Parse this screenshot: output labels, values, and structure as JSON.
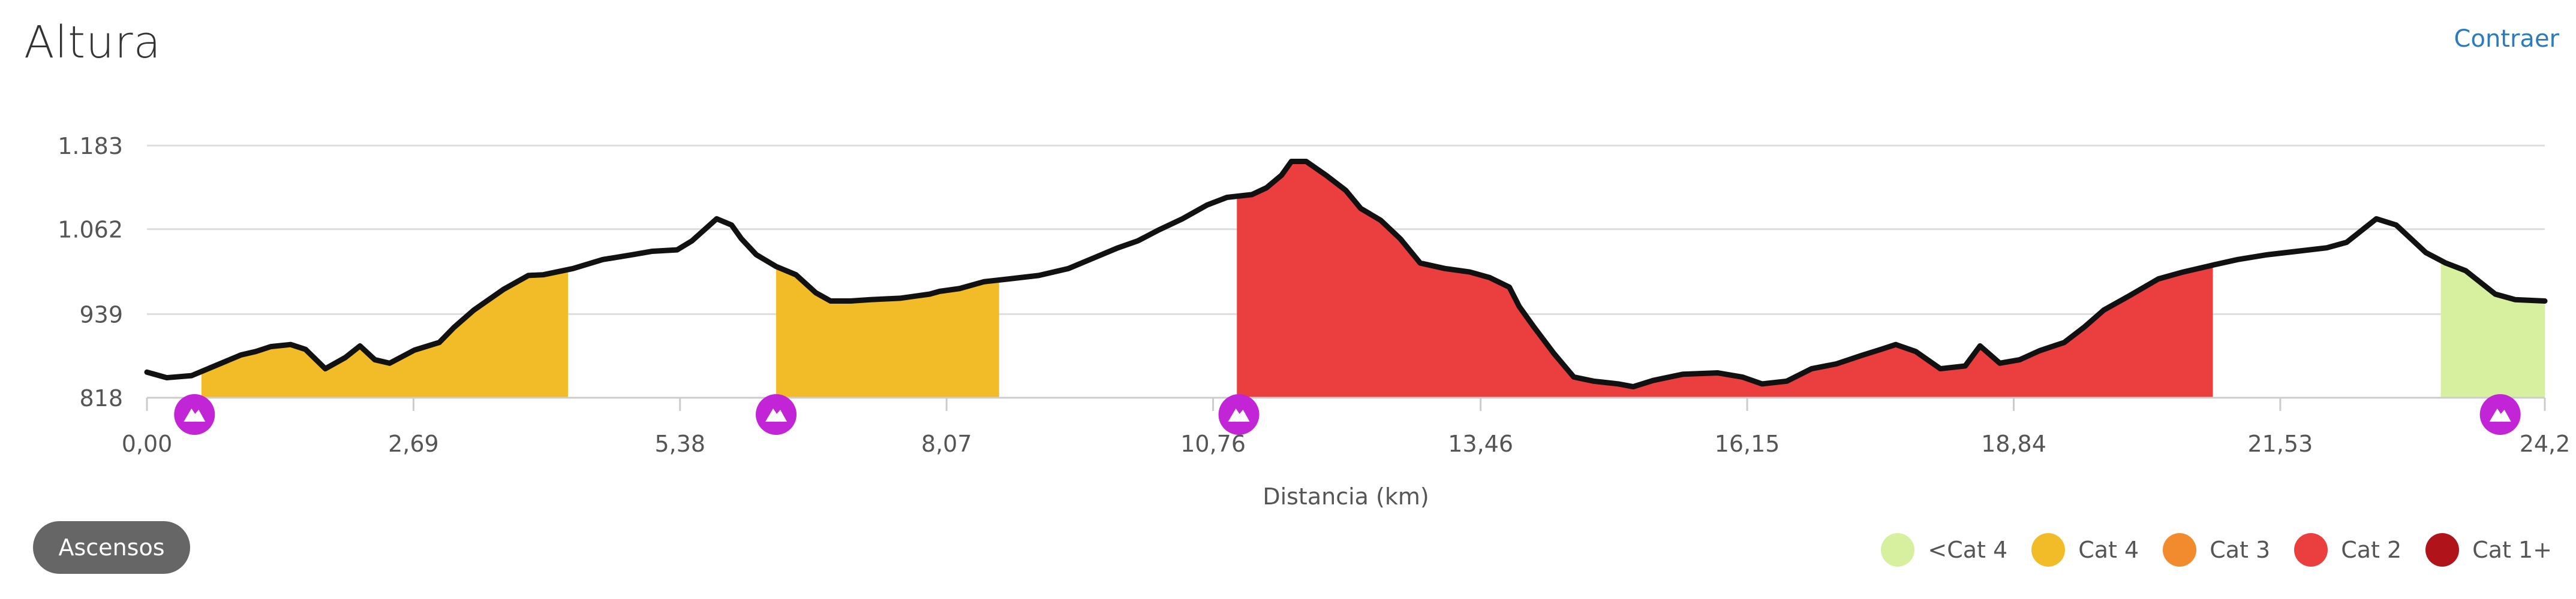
{
  "header": {
    "title": "Altura",
    "collapse_label": "Contraer"
  },
  "climbs_button_label": "Ascensos",
  "chart_data": {
    "type": "area",
    "title": "Altura",
    "xlabel": "Distancia (km)",
    "ylabel": "",
    "xlim": [
      0,
      24.2
    ],
    "ylim": [
      818,
      1183
    ],
    "x_ticks": [
      "0,00",
      "2,69",
      "5,38",
      "8,07",
      "10,76",
      "13,46",
      "16,15",
      "18,84",
      "21,53",
      "24,2"
    ],
    "x_tick_values": [
      0,
      2.69,
      5.38,
      8.07,
      10.76,
      13.46,
      16.15,
      18.84,
      21.53,
      24.2
    ],
    "y_ticks": [
      "818",
      "939",
      "1.062",
      "1.183"
    ],
    "y_tick_values": [
      818,
      939,
      1062,
      1183
    ],
    "grid": "horizontal",
    "legend_position": "bottom-right",
    "profile": [
      [
        0.0,
        855
      ],
      [
        0.2,
        847
      ],
      [
        0.45,
        850
      ],
      [
        0.7,
        865
      ],
      [
        0.95,
        880
      ],
      [
        1.1,
        885
      ],
      [
        1.25,
        892
      ],
      [
        1.45,
        895
      ],
      [
        1.6,
        888
      ],
      [
        1.8,
        860
      ],
      [
        2.0,
        876
      ],
      [
        2.15,
        893
      ],
      [
        2.3,
        873
      ],
      [
        2.45,
        868
      ],
      [
        2.7,
        887
      ],
      [
        2.95,
        898
      ],
      [
        3.1,
        920
      ],
      [
        3.3,
        945
      ],
      [
        3.6,
        975
      ],
      [
        3.85,
        995
      ],
      [
        4.0,
        996
      ],
      [
        4.3,
        1005
      ],
      [
        4.6,
        1018
      ],
      [
        4.9,
        1025
      ],
      [
        5.1,
        1030
      ],
      [
        5.35,
        1032
      ],
      [
        5.5,
        1045
      ],
      [
        5.75,
        1077
      ],
      [
        5.9,
        1068
      ],
      [
        6.0,
        1048
      ],
      [
        6.15,
        1025
      ],
      [
        6.35,
        1008
      ],
      [
        6.55,
        996
      ],
      [
        6.75,
        970
      ],
      [
        6.9,
        958
      ],
      [
        7.1,
        958
      ],
      [
        7.3,
        960
      ],
      [
        7.6,
        962
      ],
      [
        7.9,
        968
      ],
      [
        8.0,
        972
      ],
      [
        8.2,
        976
      ],
      [
        8.45,
        986
      ],
      [
        8.7,
        990
      ],
      [
        9.0,
        995
      ],
      [
        9.3,
        1005
      ],
      [
        9.55,
        1020
      ],
      [
        9.8,
        1035
      ],
      [
        10.0,
        1045
      ],
      [
        10.2,
        1060
      ],
      [
        10.45,
        1077
      ],
      [
        10.7,
        1097
      ],
      [
        10.9,
        1108
      ],
      [
        11.15,
        1112
      ],
      [
        11.3,
        1122
      ],
      [
        11.45,
        1140
      ],
      [
        11.55,
        1160
      ],
      [
        11.7,
        1160
      ],
      [
        11.9,
        1140
      ],
      [
        12.1,
        1118
      ],
      [
        12.25,
        1092
      ],
      [
        12.45,
        1075
      ],
      [
        12.65,
        1048
      ],
      [
        12.85,
        1013
      ],
      [
        13.1,
        1005
      ],
      [
        13.35,
        1000
      ],
      [
        13.55,
        992
      ],
      [
        13.75,
        978
      ],
      [
        13.85,
        950
      ],
      [
        14.0,
        920
      ],
      [
        14.2,
        882
      ],
      [
        14.4,
        848
      ],
      [
        14.6,
        842
      ],
      [
        14.85,
        838
      ],
      [
        15.0,
        834
      ],
      [
        15.2,
        843
      ],
      [
        15.5,
        852
      ],
      [
        15.85,
        854
      ],
      [
        16.1,
        848
      ],
      [
        16.3,
        838
      ],
      [
        16.55,
        842
      ],
      [
        16.8,
        860
      ],
      [
        17.05,
        867
      ],
      [
        17.3,
        879
      ],
      [
        17.5,
        888
      ],
      [
        17.65,
        895
      ],
      [
        17.85,
        885
      ],
      [
        18.1,
        860
      ],
      [
        18.35,
        864
      ],
      [
        18.5,
        893
      ],
      [
        18.7,
        868
      ],
      [
        18.9,
        873
      ],
      [
        19.1,
        886
      ],
      [
        19.35,
        898
      ],
      [
        19.55,
        920
      ],
      [
        19.75,
        945
      ],
      [
        20.0,
        965
      ],
      [
        20.3,
        990
      ],
      [
        20.55,
        1000
      ],
      [
        20.85,
        1010
      ],
      [
        21.1,
        1018
      ],
      [
        21.4,
        1025
      ],
      [
        21.7,
        1030
      ],
      [
        22.0,
        1035
      ],
      [
        22.2,
        1043
      ],
      [
        22.35,
        1060
      ],
      [
        22.5,
        1077
      ],
      [
        22.7,
        1068
      ],
      [
        22.85,
        1048
      ],
      [
        23.0,
        1028
      ],
      [
        23.2,
        1013
      ],
      [
        23.4,
        1002
      ],
      [
        23.55,
        985
      ],
      [
        23.7,
        968
      ],
      [
        23.9,
        960
      ],
      [
        24.2,
        958
      ]
    ],
    "climbs": [
      {
        "category": "Cat 4",
        "start": 0.55,
        "end": 4.25
      },
      {
        "category": "Cat 4",
        "start": 6.35,
        "end": 8.6
      },
      {
        "category": "Cat 2",
        "start": 11.0,
        "end": 20.85
      },
      {
        "category": "<Cat 4",
        "start": 23.15,
        "end": 24.2
      }
    ],
    "climb_markers": [
      0.48,
      6.35,
      11.02,
      23.75
    ],
    "legend": [
      {
        "label": "<Cat 4",
        "color": "#d6f0a0"
      },
      {
        "label": "Cat 4",
        "color": "#f2bb28"
      },
      {
        "label": "Cat 3",
        "color": "#f28a2e"
      },
      {
        "label": "Cat 2",
        "color": "#eb3f3f"
      },
      {
        "label": "Cat 1+",
        "color": "#b0141a"
      }
    ],
    "colors": {
      "line": "#111111",
      "grid": "#dddddd",
      "axis": "#cccccc",
      "tick_text": "#555555",
      "marker": "#c225d6"
    }
  }
}
